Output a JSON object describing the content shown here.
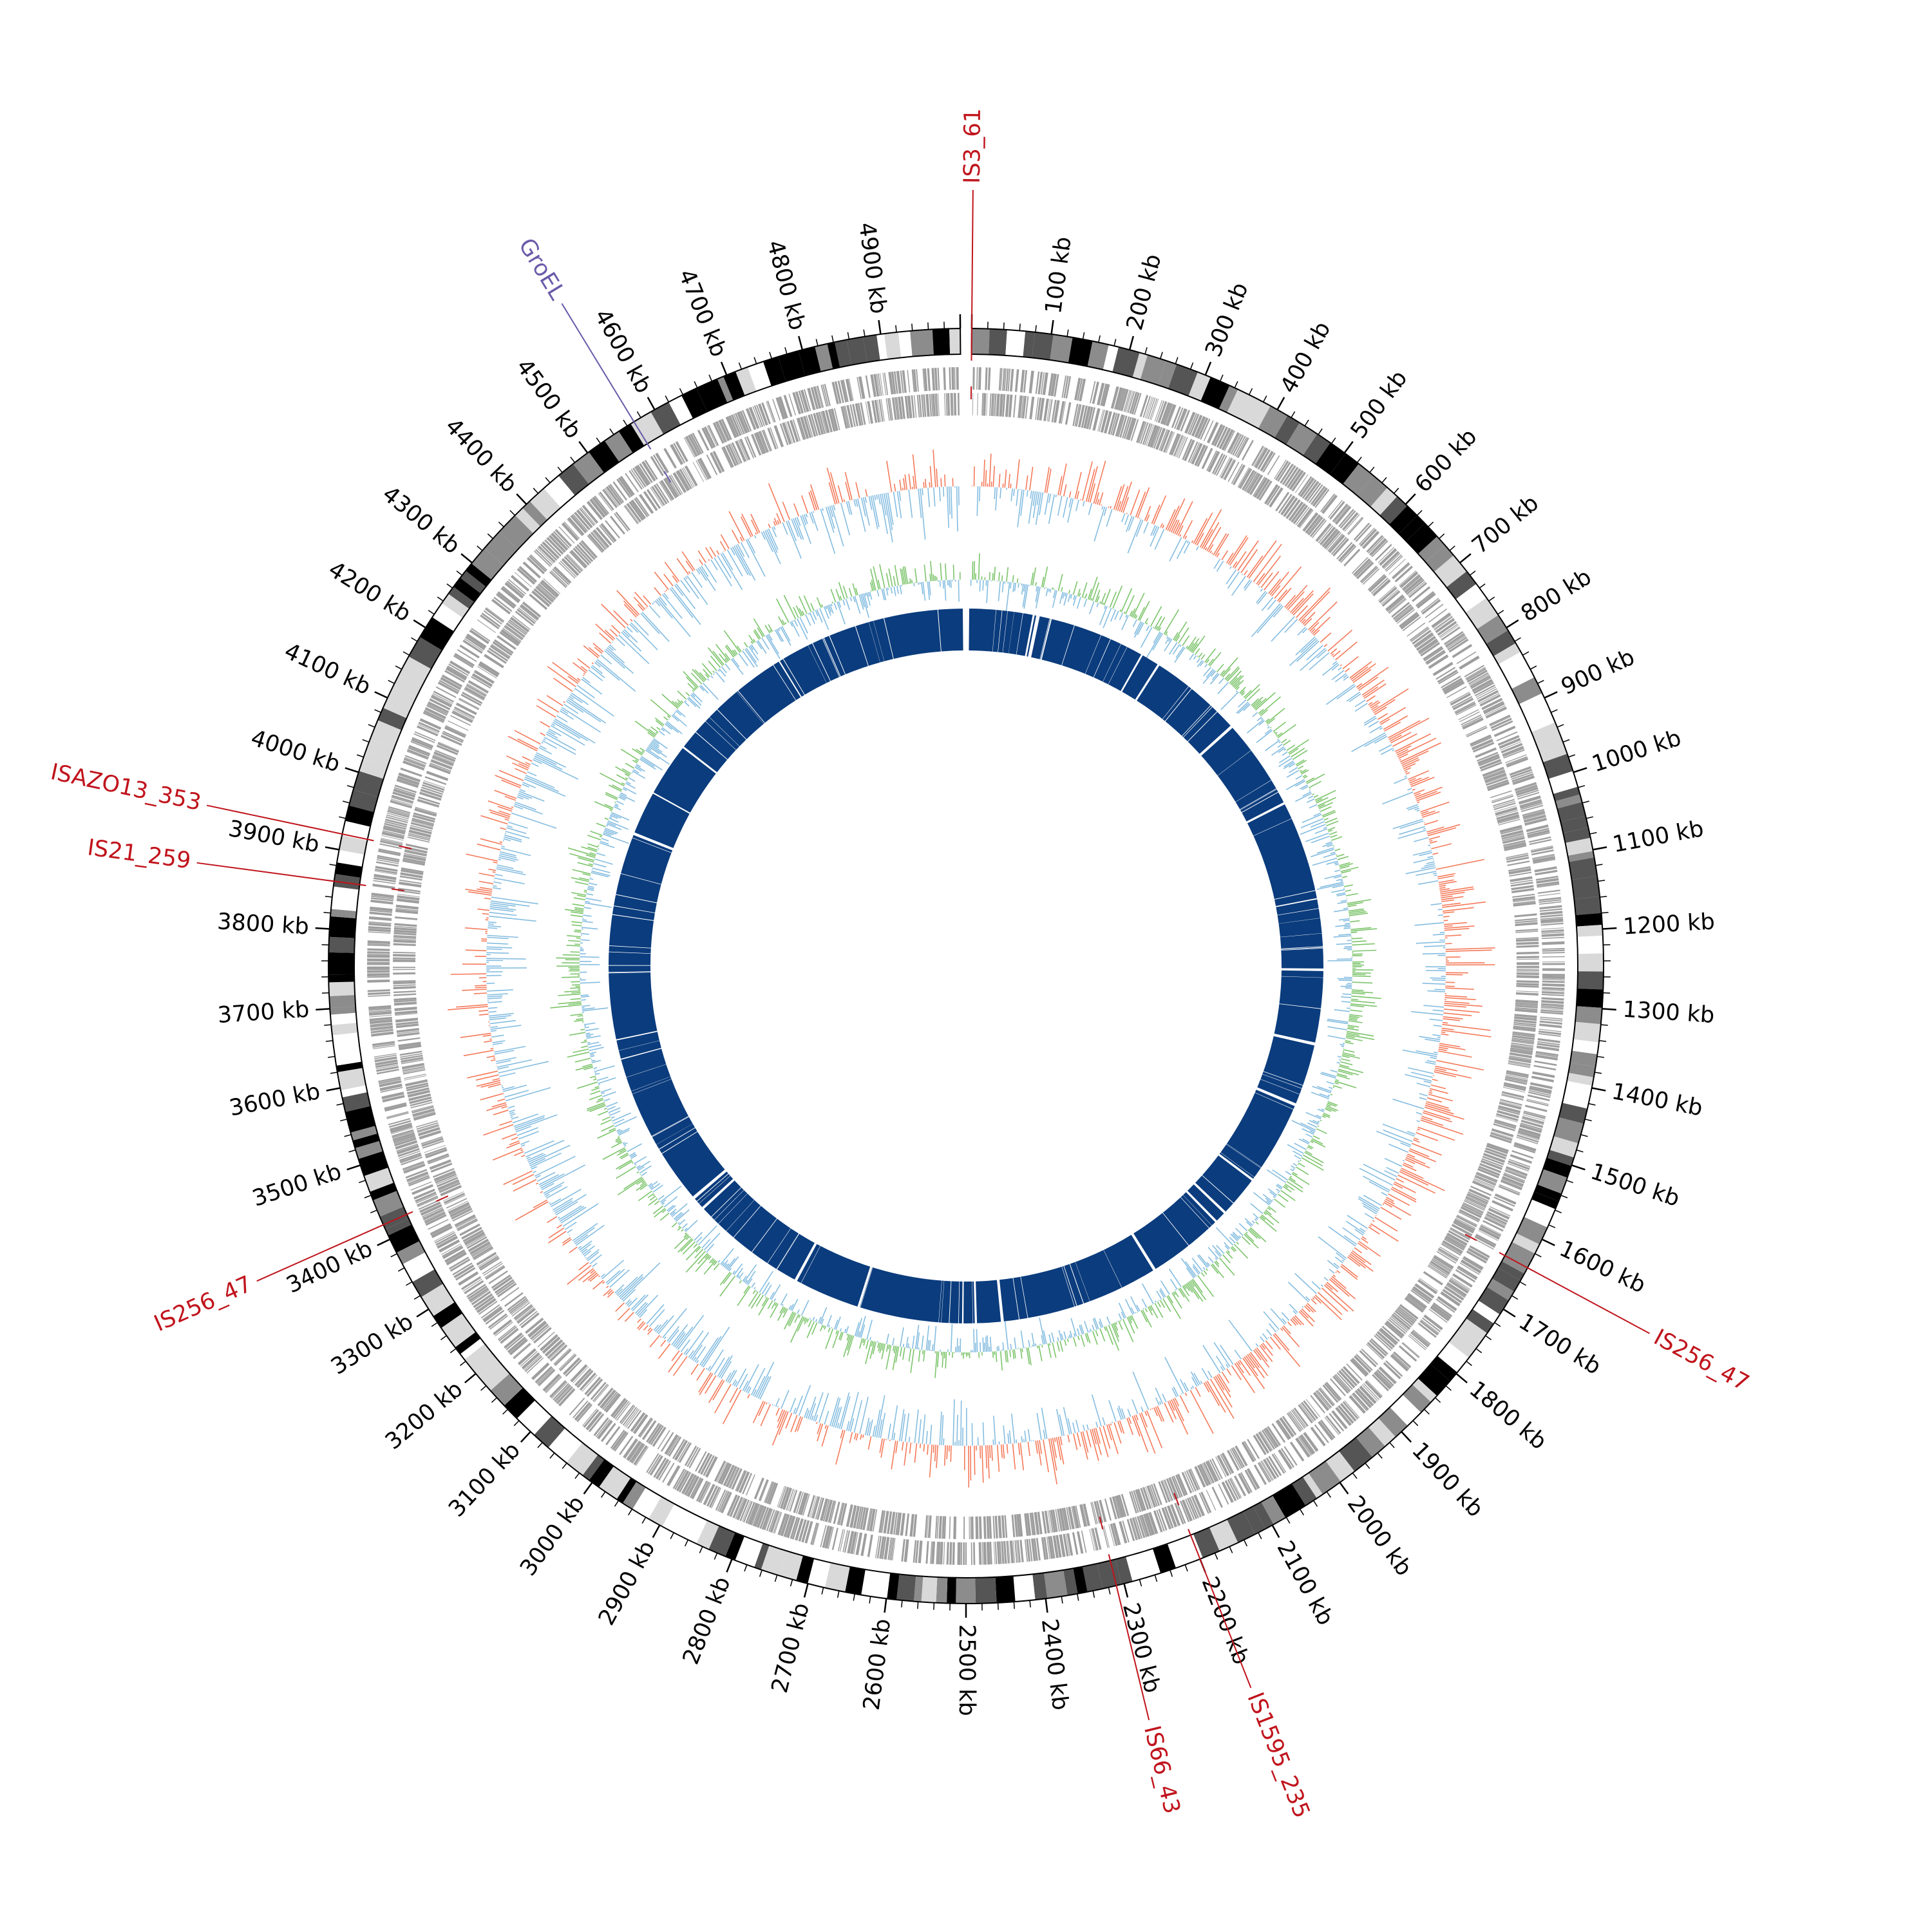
{
  "genome": {
    "length_kb": 5000,
    "tick_interval_kb": 100,
    "tick_unit": "kb",
    "tick_labels": [
      "100 kb",
      "200 kb",
      "300 kb",
      "400 kb",
      "500 kb",
      "600 kb",
      "700 kb",
      "800 kb",
      "900 kb",
      "1000 kb",
      "1100 kb",
      "1200 kb",
      "1300 kb",
      "1400 kb",
      "1500 kb",
      "1600 kb",
      "1700 kb",
      "1800 kb",
      "1900 kb",
      "2000 kb",
      "2100 kb",
      "2200 kb",
      "2300 kb",
      "2400 kb",
      "2500 kb",
      "2600 kb",
      "2700 kb",
      "2800 kb",
      "2900 kb",
      "3000 kb",
      "3100 kb",
      "3200 kb",
      "3300 kb",
      "3400 kb",
      "3500 kb",
      "3600 kb",
      "3700 kb",
      "3800 kb",
      "3900 kb",
      "4000 kb",
      "4100 kb",
      "4200 kb",
      "4300 kb",
      "4400 kb",
      "4500 kb",
      "4600 kb",
      "4700 kb",
      "4800 kb",
      "4900 kb"
    ]
  },
  "annotations": [
    {
      "label": "IS3_61",
      "position_kb": 0,
      "color": "#c0141c"
    },
    {
      "label": "IS256_47",
      "position_kb": 1640,
      "color": "#c0141c"
    },
    {
      "label": "IS1595_235",
      "position_kb": 2200,
      "color": "#c0141c"
    },
    {
      "label": "IS66_43",
      "position_kb": 2310,
      "color": "#c0141c"
    },
    {
      "label": "IS256_47",
      "position_kb": 3420,
      "color": "#c0141c"
    },
    {
      "label": "IS21_259",
      "position_kb": 3860,
      "color": "#c0141c"
    },
    {
      "label": "ISAZO13_353",
      "position_kb": 3920,
      "color": "#c0141c"
    },
    {
      "label": "GroEL",
      "position_kb": 4570,
      "color": "#6a5aa8"
    }
  ],
  "tracks": {
    "ideogram": {
      "colors": [
        "#000000",
        "#8c8c8c",
        "#d9d9d9",
        "#ffffff",
        "#555555"
      ]
    },
    "genes": {
      "color": "#9e9e9e"
    },
    "gc_skew": {
      "positive_color": "#f47a5a",
      "negative_color": "#85bde0"
    },
    "gc_content": {
      "positive_color": "#7cc46b",
      "negative_color": "#85bde0"
    },
    "features": {
      "color": "#0b3c7d"
    }
  }
}
